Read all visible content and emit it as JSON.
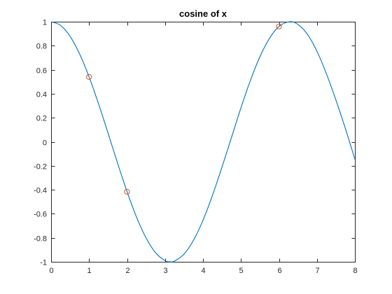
{
  "chart_data": {
    "type": "line",
    "title": "cosine of x",
    "xlabel": "",
    "ylabel": "",
    "xlim": [
      0,
      8
    ],
    "ylim": [
      -1,
      1
    ],
    "xticks": [
      0,
      1,
      2,
      3,
      4,
      5,
      6,
      7,
      8
    ],
    "xtick_labels": [
      "0",
      "1",
      "2",
      "3",
      "4",
      "5",
      "6",
      "7",
      "8"
    ],
    "yticks": [
      1,
      0.8,
      0.6,
      0.4,
      0.2,
      0,
      -0.2,
      -0.4,
      -0.6,
      -0.8,
      -1
    ],
    "ytick_labels": [
      "1",
      "0.8",
      "0.6",
      "0.4",
      "0.2",
      "0",
      "-0.2",
      "-0.4",
      "-0.6",
      "-0.8",
      "-1"
    ],
    "grid": false,
    "series": [
      {
        "kind": "line",
        "color": "#0072bd",
        "x": [
          0,
          0.25,
          0.5,
          0.75,
          1,
          1.25,
          1.5,
          1.75,
          2,
          2.25,
          2.5,
          2.75,
          3,
          3.14,
          3.25,
          3.5,
          3.75,
          4,
          4.25,
          4.5,
          4.75,
          5,
          5.25,
          5.5,
          5.75,
          6,
          6.28,
          6.5,
          6.75,
          7,
          7.25,
          7.5,
          7.75,
          8
        ],
        "y": [
          1,
          0.969,
          0.878,
          0.732,
          0.54,
          0.315,
          0.071,
          -0.178,
          -0.416,
          -0.628,
          -0.801,
          -0.924,
          -0.99,
          -1,
          -0.994,
          -0.936,
          -0.82,
          -0.654,
          -0.446,
          -0.211,
          0.036,
          0.284,
          0.512,
          0.709,
          0.861,
          0.96,
          1,
          0.977,
          0.895,
          0.754,
          0.566,
          0.347,
          0.109,
          -0.146
        ]
      },
      {
        "kind": "markers",
        "marker": "circle",
        "color": "#d95319",
        "x": [
          1,
          2,
          6
        ],
        "y": [
          0.54,
          -0.416,
          0.96
        ]
      }
    ]
  }
}
